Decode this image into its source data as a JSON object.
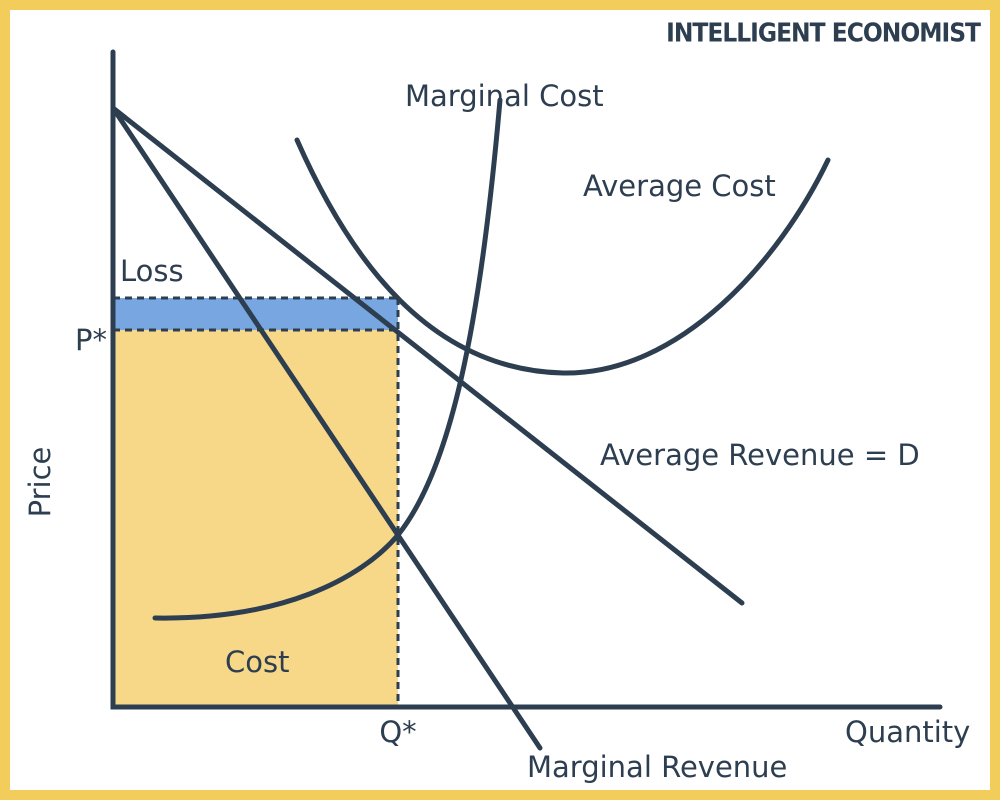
{
  "brand": "INTELLIGENT ECONOMIST",
  "axes": {
    "y_label": "Price",
    "x_label": "Quantity",
    "price_mark": "P*",
    "quantity_mark": "Q*"
  },
  "curves": {
    "marginal_cost": "Marginal Cost",
    "average_cost": "Average Cost",
    "average_revenue": "Average Revenue = D",
    "marginal_revenue": "Marginal Revenue"
  },
  "regions": {
    "loss": "Loss",
    "cost": "Cost"
  }
}
